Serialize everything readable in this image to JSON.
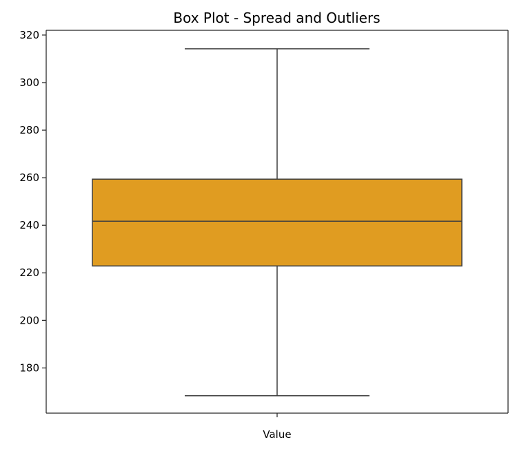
{
  "chart_data": {
    "type": "box",
    "title": "Box Plot - Spread and Outliers",
    "xlabel": "",
    "ylabel": "",
    "categories": [
      "Value"
    ],
    "boxes": [
      {
        "category": "Value",
        "whisker_low": 168.3,
        "q1": 222.9,
        "median": 241.7,
        "q3": 259.4,
        "whisker_high": 314.2,
        "outliers": []
      }
    ],
    "ylim": [
      161,
      322
    ],
    "yticks": [
      180,
      200,
      220,
      240,
      260,
      280,
      300,
      320
    ],
    "grid": false,
    "colors": {
      "box_fill": "#e09c21",
      "box_edge": "#3f3f3f",
      "axis": "#262626"
    }
  }
}
